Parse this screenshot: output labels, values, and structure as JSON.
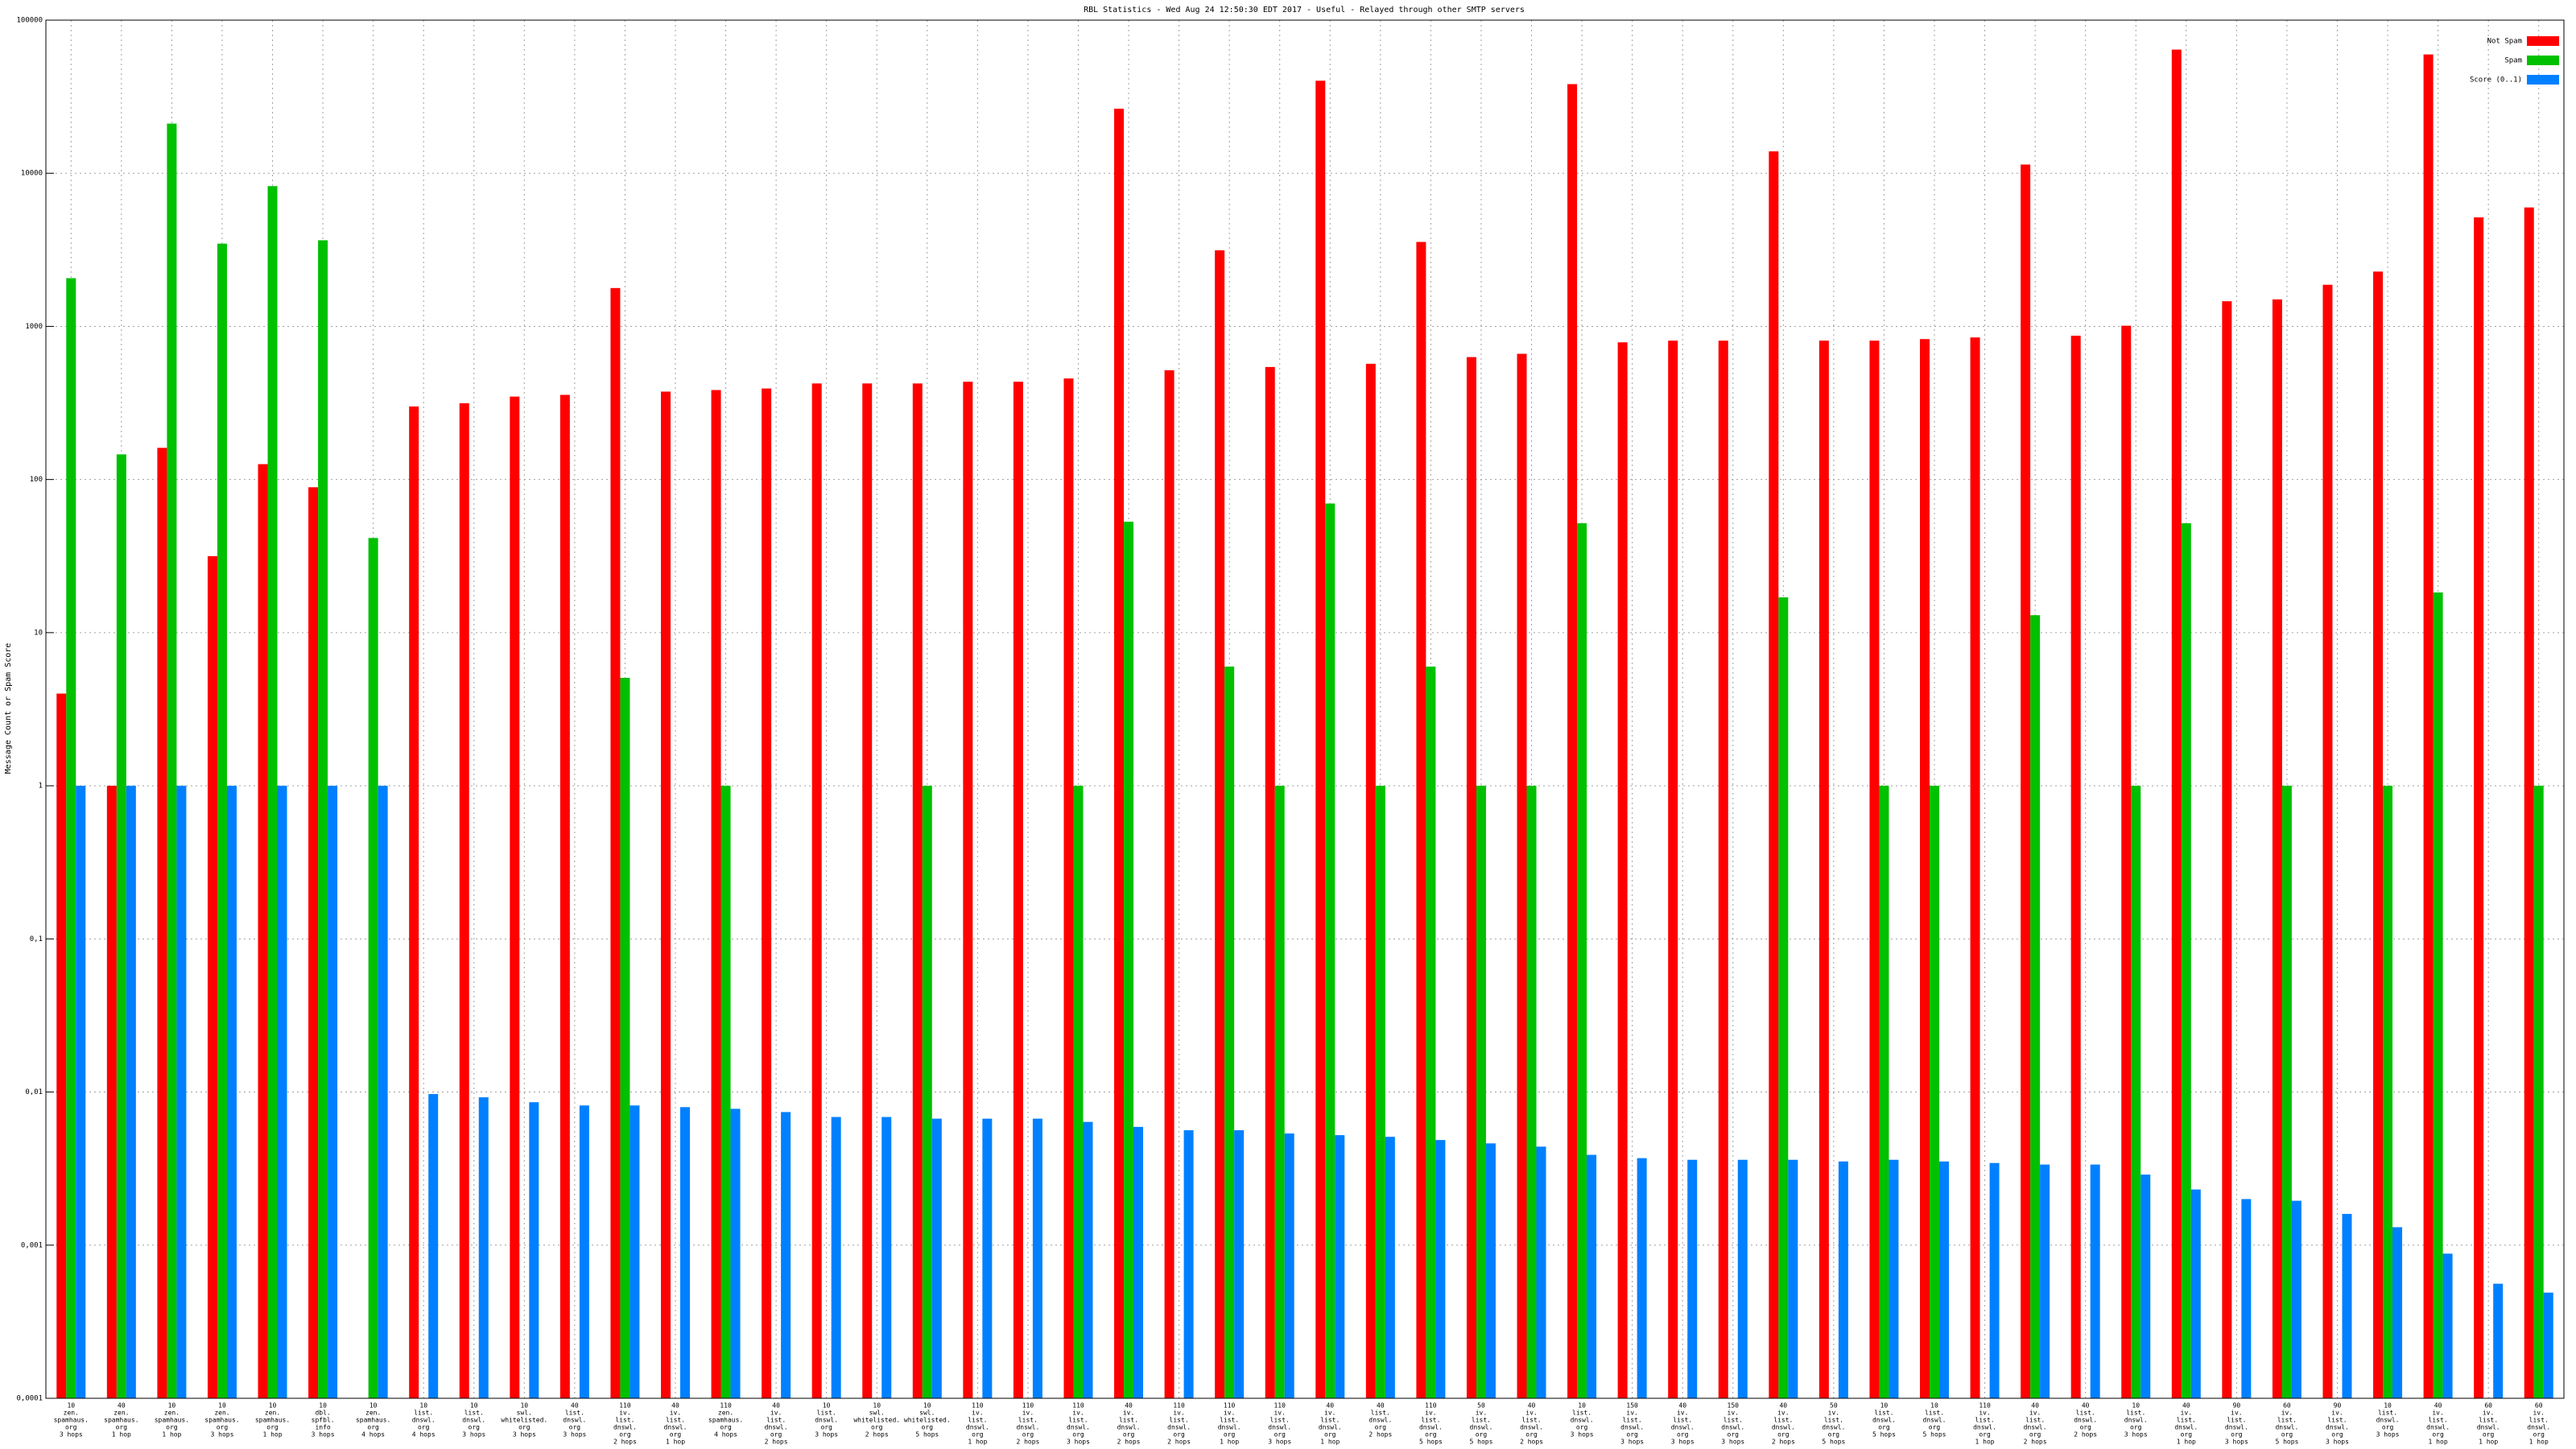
{
  "chart_data": {
    "type": "bar",
    "title": "RBL Statistics - Wed Aug 24 12:50:30 EDT 2017 - Useful - Relayed through other SMTP servers",
    "y_label": "Message Count or Spam Score",
    "log_scale": true,
    "grid": true,
    "legend": "top-right",
    "ylim": [
      0.0001,
      100000
    ],
    "yticks": [
      {
        "value": 0.0001,
        "label": "0,0001"
      },
      {
        "value": 0.001,
        "label": "0,001"
      },
      {
        "value": 0.01,
        "label": "0,01"
      },
      {
        "value": 0.1,
        "label": "0,1"
      },
      1,
      10,
      100,
      1000,
      10000,
      100000
    ],
    "categories": [
      [
        "10",
        "zen.",
        "spamhaus.",
        "org",
        "3 hops"
      ],
      [
        "40",
        "zen.",
        "spamhaus.",
        "org",
        "1 hop"
      ],
      [
        "10",
        "zen.",
        "spamhaus.",
        "org",
        "1 hop"
      ],
      [
        "10",
        "zen.",
        "spamhaus.",
        "org",
        "3 hops"
      ],
      [
        "10",
        "zen.",
        "spamhaus.",
        "org",
        "1 hop"
      ],
      [
        "10",
        "dbl.",
        "spfbl.",
        "info",
        "3 hops"
      ],
      [
        "10",
        "zen.",
        "spamhaus.",
        "org",
        "4 hops"
      ],
      [
        "10",
        "list.",
        "dnswl.",
        "org",
        "4 hops"
      ],
      [
        "10",
        "list.",
        "dnswl.",
        "org",
        "3 hops"
      ],
      [
        "10",
        "swl.",
        "whitelisted.",
        "org",
        "3 hops"
      ],
      [
        "40",
        "list.",
        "dnswl.",
        "org",
        "3 hops"
      ],
      [
        "110",
        "iv.",
        "list.",
        "dnswl.",
        "org",
        "2 hops"
      ],
      [
        "40",
        "iv.",
        "list.",
        "dnswl.",
        "org",
        "1 hop"
      ],
      [
        "110",
        "zen.",
        "spamhaus.",
        "org",
        "4 hops"
      ],
      [
        "40",
        "iv.",
        "list.",
        "dnswl.",
        "org",
        "2 hops"
      ],
      [
        "10",
        "list.",
        "dnswl.",
        "org",
        "3 hops"
      ],
      [
        "10",
        "swl.",
        "whitelisted.",
        "org",
        "2 hops"
      ],
      [
        "10",
        "swl.",
        "whitelisted.",
        "org",
        "5 hops"
      ],
      [
        "110",
        "iv.",
        "list.",
        "dnswl.",
        "org",
        "1 hop"
      ],
      [
        "110",
        "iv.",
        "list.",
        "dnswl.",
        "org",
        "2 hops"
      ],
      [
        "110",
        "iv.",
        "list.",
        "dnswl.",
        "org",
        "3 hops"
      ],
      [
        "40",
        "iv.",
        "list.",
        "dnswl.",
        "org",
        "2 hops"
      ],
      [
        "110",
        "iv.",
        "list.",
        "dnswl.",
        "org",
        "2 hops"
      ],
      [
        "110",
        "iv.",
        "list.",
        "dnswl.",
        "org",
        "1 hop"
      ],
      [
        "110",
        "iv.",
        "list.",
        "dnswl.",
        "org",
        "3 hops"
      ],
      [
        "40",
        "iv.",
        "list.",
        "dnswl.",
        "org",
        "1 hop"
      ],
      [
        "40",
        "list.",
        "dnswl.",
        "org",
        "2 hops"
      ],
      [
        "110",
        "iv.",
        "list.",
        "dnswl.",
        "org",
        "5 hops"
      ],
      [
        "50",
        "iv.",
        "list.",
        "dnswl.",
        "org",
        "5 hops"
      ],
      [
        "40",
        "iv.",
        "list.",
        "dnswl.",
        "org",
        "2 hops"
      ],
      [
        "10",
        "list.",
        "dnswl.",
        "org",
        "3 hops"
      ],
      [
        "150",
        "iv.",
        "list.",
        "dnswl.",
        "org",
        "3 hops"
      ],
      [
        "40",
        "iv.",
        "list.",
        "dnswl.",
        "org",
        "3 hops"
      ],
      [
        "150",
        "iv.",
        "list.",
        "dnswl.",
        "org",
        "3 hops"
      ],
      [
        "40",
        "iv.",
        "list.",
        "dnswl.",
        "org",
        "2 hops"
      ],
      [
        "50",
        "iv.",
        "list.",
        "dnswl.",
        "org",
        "5 hops"
      ],
      [
        "10",
        "list.",
        "dnswl.",
        "org",
        "5 hops"
      ],
      [
        "10",
        "list.",
        "dnswl.",
        "org",
        "5 hops"
      ],
      [
        "110",
        "iv.",
        "list.",
        "dnswl.",
        "org",
        "1 hop"
      ],
      [
        "40",
        "iv.",
        "list.",
        "dnswl.",
        "org",
        "2 hops"
      ],
      [
        "40",
        "list.",
        "dnswl.",
        "org",
        "2 hops"
      ],
      [
        "10",
        "list.",
        "dnswl.",
        "org",
        "3 hops"
      ],
      [
        "40",
        "iv.",
        "list.",
        "dnswl.",
        "org",
        "1 hop"
      ],
      [
        "90",
        "iv.",
        "list.",
        "dnswl.",
        "org",
        "3 hops"
      ],
      [
        "60",
        "iv.",
        "list.",
        "dnswl.",
        "org",
        "5 hops"
      ],
      [
        "90",
        "iv.",
        "list.",
        "dnswl.",
        "org",
        "3 hops"
      ],
      [
        "10",
        "list.",
        "dnswl.",
        "org",
        "3 hops"
      ],
      [
        "40",
        "iv.",
        "list.",
        "dnswl.",
        "org",
        "1 hop"
      ],
      [
        "60",
        "iv.",
        "list.",
        "dnswl.",
        "org",
        "1 hop"
      ],
      [
        "60",
        "iv.",
        "list.",
        "dnswl.",
        "org",
        "1 hop"
      ]
    ],
    "series": [
      {
        "name": "Not Spam",
        "color": "#ff0000",
        "values": [
          4,
          1,
          161,
          31.6,
          126,
          89,
          null,
          300,
          315,
          348,
          357,
          1780,
          375,
          384,
          393,
          424,
          424,
          424,
          435,
          435,
          457,
          26400,
          517,
          3140,
          543,
          40200,
          570,
          3560,
          630,
          662,
          38200,
          787,
          807,
          807,
          13900,
          807,
          807,
          826,
          847,
          11400,
          869,
          1010,
          64200,
          1460,
          1500,
          1870,
          2280,
          59700,
          5150,
          5980
        ]
      },
      {
        "name": "Spam",
        "color": "#00c000",
        "values": [
          2065,
          146,
          21100,
          3470,
          8240,
          3650,
          41.5,
          null,
          null,
          null,
          null,
          5.07,
          null,
          1,
          null,
          null,
          null,
          1,
          null,
          null,
          1,
          53,
          null,
          6,
          1,
          69.7,
          1,
          6,
          1,
          1,
          51.8,
          null,
          null,
          null,
          17,
          null,
          1,
          1,
          null,
          13,
          null,
          1,
          51.8,
          null,
          1,
          null,
          1,
          18.3,
          null,
          1
        ]
      },
      {
        "name": "Score (0..1)",
        "color": "#0080ff",
        "values": [
          1,
          1,
          1,
          1,
          1,
          1,
          1,
          0.0097,
          0.00924,
          0.00858,
          0.00817,
          0.00817,
          0.00797,
          0.00777,
          0.0074,
          0.00687,
          0.00687,
          0.0067,
          0.0067,
          0.0067,
          0.00638,
          0.00592,
          0.00563,
          0.00563,
          0.00536,
          0.00523,
          0.0051,
          0.00486,
          0.00462,
          0.0044,
          0.00389,
          0.0037,
          0.00361,
          0.00361,
          0.00361,
          0.00352,
          0.00361,
          0.00352,
          0.00344,
          0.00336,
          0.00336,
          0.00289,
          0.00231,
          0.002,
          0.00195,
          0.0016,
          0.00131,
          0.00088,
          0.00056,
          0.00049
        ]
      }
    ]
  }
}
